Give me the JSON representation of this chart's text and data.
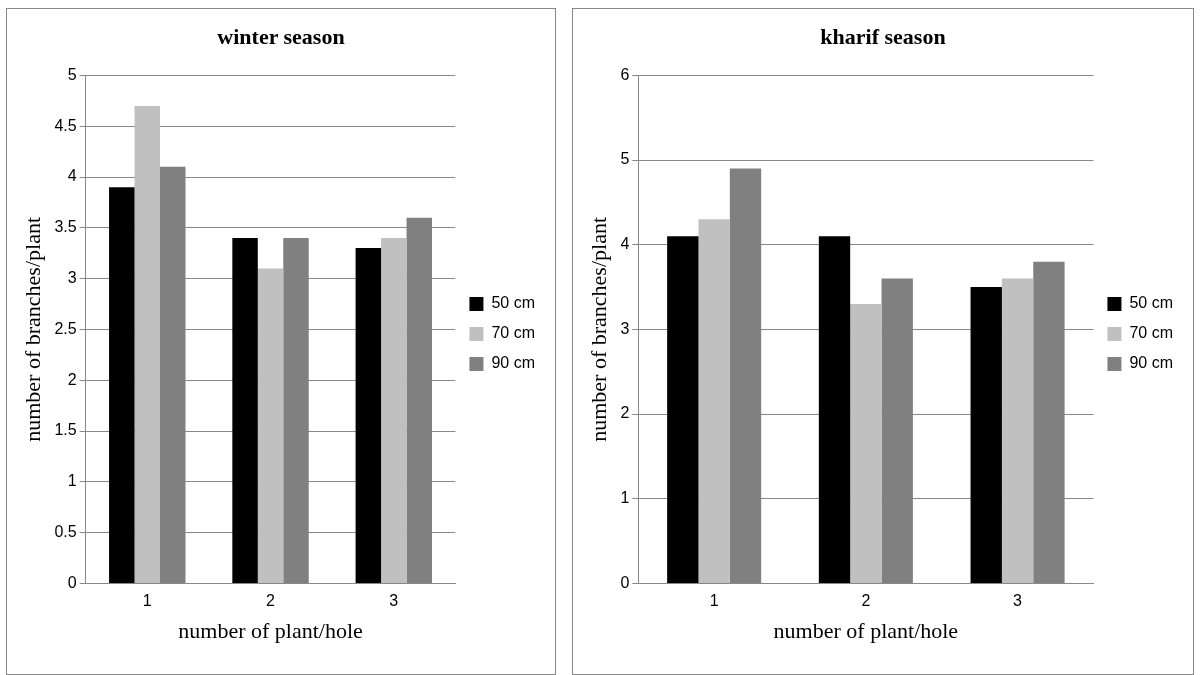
{
  "chart_data": [
    {
      "type": "bar",
      "title": "winter season",
      "xlabel": "number of plant/hole",
      "ylabel": "number of branches/plant",
      "categories": [
        "1",
        "2",
        "3"
      ],
      "series": [
        {
          "name": "50 cm",
          "color": "#000000",
          "values": [
            3.9,
            3.4,
            3.3
          ]
        },
        {
          "name": "70 cm",
          "color": "#c0c0c0",
          "values": [
            4.7,
            3.1,
            3.4
          ]
        },
        {
          "name": "90 cm",
          "color": "#808080",
          "values": [
            4.1,
            3.4,
            3.6
          ]
        }
      ],
      "ylim": [
        0,
        5
      ],
      "yticks": [
        0,
        0.5,
        1,
        1.5,
        2,
        2.5,
        3,
        3.5,
        4,
        4.5,
        5
      ],
      "grid": "y",
      "legend": "right"
    },
    {
      "type": "bar",
      "title": "kharif season",
      "xlabel": "number of plant/hole",
      "ylabel": "number of branches/plant",
      "categories": [
        "1",
        "2",
        "3"
      ],
      "series": [
        {
          "name": "50 cm",
          "color": "#000000",
          "values": [
            4.1,
            4.1,
            3.5
          ]
        },
        {
          "name": "70 cm",
          "color": "#c0c0c0",
          "values": [
            4.3,
            3.3,
            3.6
          ]
        },
        {
          "name": "90 cm",
          "color": "#808080",
          "values": [
            4.9,
            3.6,
            3.8
          ]
        }
      ],
      "ylim": [
        0,
        6
      ],
      "yticks": [
        0,
        1,
        2,
        3,
        4,
        5,
        6
      ],
      "grid": "y",
      "legend": "right"
    }
  ]
}
